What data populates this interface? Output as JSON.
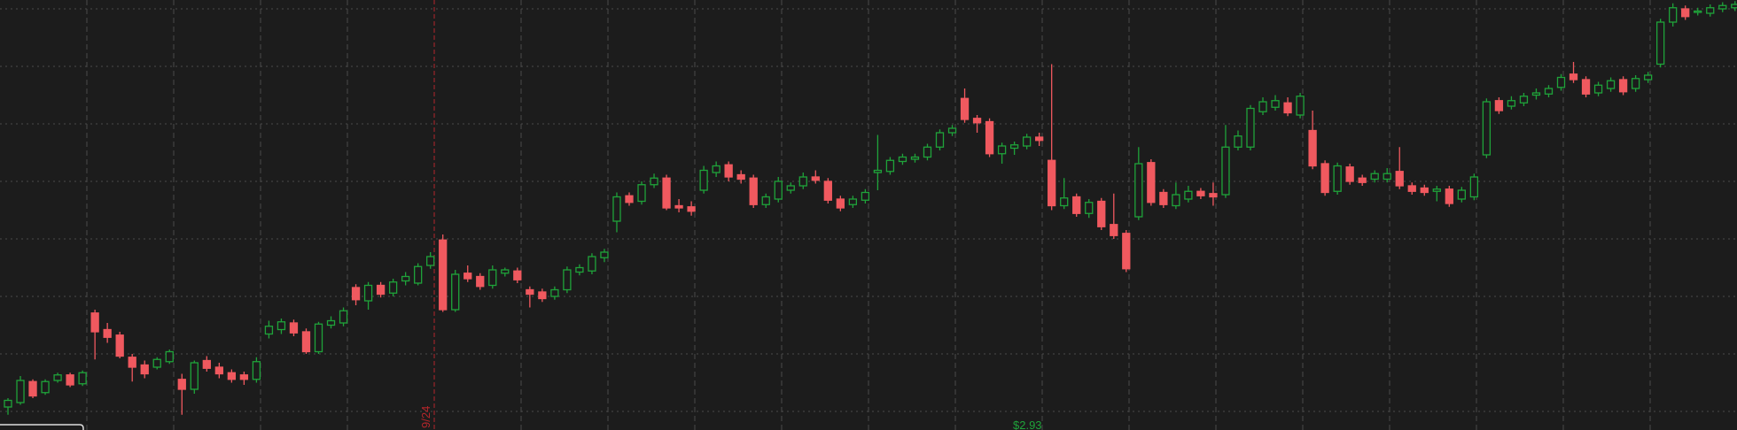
{
  "chart_data": {
    "type": "candlestick",
    "open": [
      1.984,
      1.992,
      2.03,
      2.01,
      2.032,
      2.042,
      2.026,
      2.154,
      2.124,
      2.114,
      2.074,
      2.06,
      2.056,
      2.066,
      2.034,
      2.016,
      2.068,
      2.056,
      2.046,
      2.042,
      2.034,
      2.116,
      2.124,
      2.136,
      2.12,
      2.084,
      2.132,
      2.136,
      2.2,
      2.176,
      2.204,
      2.19,
      2.212,
      2.208,
      2.24,
      2.286,
      2.16,
      2.226,
      2.22,
      2.204,
      2.226,
      2.23,
      2.196,
      2.192,
      2.184,
      2.196,
      2.228,
      2.23,
      2.254,
      2.32,
      2.366,
      2.356,
      2.386,
      2.398,
      2.348,
      2.346,
      2.376,
      2.408,
      2.422,
      2.404,
      2.398,
      2.35,
      2.36,
      2.376,
      2.384,
      2.4,
      2.392,
      2.36,
      2.35,
      2.358,
      2.408,
      2.41,
      2.428,
      2.432,
      2.436,
      2.454,
      2.48,
      2.542,
      2.506,
      2.5,
      2.442,
      2.452,
      2.456,
      2.472,
      2.43,
      2.348,
      2.364,
      2.334,
      2.356,
      2.314,
      2.298,
      2.328,
      2.426,
      2.372,
      2.348,
      2.36,
      2.374,
      2.37,
      2.368,
      2.454,
      2.454,
      2.518,
      2.526,
      2.534,
      2.512,
      2.484,
      2.424,
      2.374,
      2.418,
      2.398,
      2.396,
      2.396,
      2.41,
      2.384,
      2.38,
      2.374,
      2.378,
      2.36,
      2.364,
      2.44,
      2.538,
      2.528,
      2.534,
      2.548,
      2.55,
      2.562,
      2.586,
      2.576,
      2.552,
      2.56,
      2.576,
      2.56,
      2.576,
      2.604,
      2.68,
      2.704,
      2.698,
      2.696,
      2.704,
      2.706
    ],
    "high": [
      2.0,
      2.04,
      2.034,
      2.034,
      2.046,
      2.046,
      2.05,
      2.16,
      2.136,
      2.12,
      2.08,
      2.068,
      2.074,
      2.088,
      2.044,
      2.068,
      2.076,
      2.064,
      2.052,
      2.048,
      2.074,
      2.14,
      2.144,
      2.142,
      2.126,
      2.138,
      2.148,
      2.164,
      2.206,
      2.21,
      2.21,
      2.216,
      2.228,
      2.244,
      2.264,
      2.296,
      2.232,
      2.24,
      2.226,
      2.24,
      2.236,
      2.236,
      2.202,
      2.198,
      2.202,
      2.238,
      2.242,
      2.262,
      2.27,
      2.372,
      2.372,
      2.392,
      2.406,
      2.404,
      2.36,
      2.356,
      2.42,
      2.428,
      2.428,
      2.412,
      2.404,
      2.37,
      2.4,
      2.39,
      2.408,
      2.412,
      2.398,
      2.366,
      2.366,
      2.378,
      2.476,
      2.436,
      2.442,
      2.442,
      2.46,
      2.486,
      2.494,
      2.56,
      2.512,
      2.506,
      2.462,
      2.464,
      2.478,
      2.48,
      2.604,
      2.398,
      2.37,
      2.36,
      2.362,
      2.37,
      2.304,
      2.454,
      2.432,
      2.378,
      2.39,
      2.384,
      2.38,
      2.39,
      2.494,
      2.484,
      2.53,
      2.544,
      2.548,
      2.544,
      2.552,
      2.52,
      2.43,
      2.426,
      2.424,
      2.404,
      2.412,
      2.416,
      2.454,
      2.39,
      2.386,
      2.384,
      2.384,
      2.382,
      2.406,
      2.542,
      2.544,
      2.546,
      2.552,
      2.56,
      2.566,
      2.586,
      2.608,
      2.582,
      2.572,
      2.58,
      2.582,
      2.584,
      2.59,
      2.686,
      2.714,
      2.71,
      2.706,
      2.712,
      2.716,
      2.718
    ],
    "low": [
      1.97,
      1.988,
      2.0,
      2.006,
      2.028,
      2.02,
      2.022,
      2.07,
      2.1,
      2.072,
      2.03,
      2.036,
      2.052,
      2.062,
      1.97,
      2.008,
      2.048,
      2.036,
      2.028,
      2.024,
      2.028,
      2.108,
      2.116,
      2.112,
      2.08,
      2.08,
      2.126,
      2.13,
      2.168,
      2.16,
      2.182,
      2.184,
      2.204,
      2.204,
      2.234,
      2.156,
      2.156,
      2.21,
      2.196,
      2.198,
      2.22,
      2.208,
      2.164,
      2.174,
      2.178,
      2.19,
      2.222,
      2.224,
      2.246,
      2.3,
      2.348,
      2.35,
      2.38,
      2.34,
      2.336,
      2.33,
      2.37,
      2.4,
      2.392,
      2.388,
      2.344,
      2.344,
      2.354,
      2.37,
      2.378,
      2.388,
      2.352,
      2.338,
      2.344,
      2.352,
      2.376,
      2.404,
      2.422,
      2.426,
      2.43,
      2.448,
      2.474,
      2.498,
      2.48,
      2.436,
      2.424,
      2.44,
      2.45,
      2.456,
      2.34,
      2.342,
      2.328,
      2.326,
      2.304,
      2.288,
      2.228,
      2.322,
      2.348,
      2.344,
      2.342,
      2.354,
      2.36,
      2.348,
      2.362,
      2.448,
      2.448,
      2.512,
      2.52,
      2.51,
      2.506,
      2.414,
      2.366,
      2.368,
      2.386,
      2.384,
      2.39,
      2.39,
      2.378,
      2.368,
      2.366,
      2.356,
      2.346,
      2.354,
      2.358,
      2.434,
      2.514,
      2.522,
      2.528,
      2.54,
      2.544,
      2.556,
      2.57,
      2.544,
      2.546,
      2.554,
      2.548,
      2.554,
      2.57,
      2.598,
      2.672,
      2.684,
      2.692,
      2.69,
      2.698,
      2.7
    ],
    "close": [
      1.996,
      2.032,
      2.004,
      2.03,
      2.042,
      2.024,
      2.046,
      2.12,
      2.11,
      2.076,
      2.056,
      2.044,
      2.07,
      2.084,
      2.016,
      2.064,
      2.054,
      2.044,
      2.034,
      2.034,
      2.066,
      2.13,
      2.138,
      2.118,
      2.084,
      2.134,
      2.14,
      2.158,
      2.178,
      2.204,
      2.188,
      2.21,
      2.22,
      2.238,
      2.256,
      2.16,
      2.224,
      2.216,
      2.202,
      2.232,
      2.232,
      2.214,
      2.188,
      2.18,
      2.196,
      2.232,
      2.236,
      2.256,
      2.264,
      2.364,
      2.354,
      2.386,
      2.398,
      2.344,
      2.344,
      2.338,
      2.412,
      2.42,
      2.4,
      2.396,
      2.35,
      2.364,
      2.392,
      2.384,
      2.4,
      2.394,
      2.358,
      2.344,
      2.36,
      2.372,
      2.412,
      2.43,
      2.436,
      2.436,
      2.454,
      2.48,
      2.488,
      2.504,
      2.498,
      2.442,
      2.456,
      2.458,
      2.472,
      2.466,
      2.348,
      2.362,
      2.334,
      2.354,
      2.31,
      2.294,
      2.234,
      2.424,
      2.354,
      2.35,
      2.368,
      2.374,
      2.366,
      2.364,
      2.454,
      2.474,
      2.524,
      2.536,
      2.538,
      2.516,
      2.546,
      2.42,
      2.372,
      2.42,
      2.392,
      2.39,
      2.406,
      2.406,
      2.384,
      2.374,
      2.372,
      2.378,
      2.352,
      2.376,
      2.4,
      2.536,
      2.52,
      2.538,
      2.546,
      2.552,
      2.56,
      2.58,
      2.576,
      2.55,
      2.566,
      2.574,
      2.554,
      2.578,
      2.584,
      2.68,
      2.706,
      2.69,
      2.7,
      2.706,
      2.71,
      2.712
    ],
    "up_color": "#1fa33a",
    "down_color": "#f0595f",
    "ylim": [
      1.9424,
      2.72
    ],
    "yticks": [
      1.976,
      2.08,
      2.184,
      2.288,
      2.392,
      2.496,
      2.6,
      2.704
    ],
    "grid": true,
    "marker_label": "9/24",
    "price_label": "$2.93"
  }
}
